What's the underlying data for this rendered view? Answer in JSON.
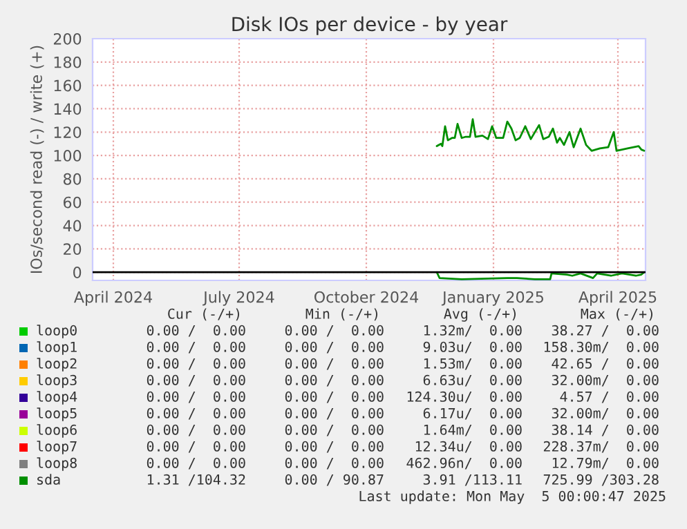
{
  "chart_data": {
    "type": "line",
    "title": "Disk IOs per device - by year",
    "ylabel": "IOs/second read (-) / write (+)",
    "xlim": [
      "2024-03-17",
      "2025-04-21"
    ],
    "xticks": [
      {
        "value": "2024-04-01",
        "label": "April 2024"
      },
      {
        "value": "2024-07-01",
        "label": "July 2024"
      },
      {
        "value": "2024-10-01",
        "label": "October 2024"
      },
      {
        "value": "2025-01-01",
        "label": "January 2025"
      },
      {
        "value": "2025-04-01",
        "label": "April 2025"
      }
    ],
    "ylim": [
      -7,
      200
    ],
    "yticks": [
      0,
      20,
      40,
      60,
      80,
      100,
      120,
      140,
      160,
      180,
      200
    ],
    "grid": true,
    "legend": "bottom",
    "line_style": "solid",
    "marker": "none",
    "ref_lines": [
      {
        "axis": "y",
        "value": 0,
        "color": "#000000"
      }
    ],
    "series": [
      {
        "name": "loop0",
        "color": "#00cc00"
      },
      {
        "name": "loop1",
        "color": "#0066b3"
      },
      {
        "name": "loop2",
        "color": "#ff8000"
      },
      {
        "name": "loop3",
        "color": "#ffcc00"
      },
      {
        "name": "loop4",
        "color": "#330099"
      },
      {
        "name": "loop5",
        "color": "#990099"
      },
      {
        "name": "loop6",
        "color": "#ccff00"
      },
      {
        "name": "loop7",
        "color": "#ff0000"
      },
      {
        "name": "loop8",
        "color": "#808080"
      },
      {
        "name": "sda",
        "color": "#008f00",
        "x": [
          "2024-11-21",
          "2024-11-24",
          "2024-11-25",
          "2024-11-27",
          "2024-11-29",
          "2024-12-02",
          "2024-12-04",
          "2024-12-06",
          "2024-12-09",
          "2024-12-12",
          "2024-12-15",
          "2024-12-17",
          "2024-12-19",
          "2024-12-24",
          "2024-12-28",
          "2024-12-31",
          "2025-01-03",
          "2025-01-08",
          "2025-01-11",
          "2025-01-14",
          "2025-01-17",
          "2025-01-20",
          "2025-01-24",
          "2025-01-28",
          "2025-02-03",
          "2025-02-06",
          "2025-02-10",
          "2025-02-13",
          "2025-02-16",
          "2025-02-18",
          "2025-02-21",
          "2025-02-25",
          "2025-02-28",
          "2025-03-05",
          "2025-03-09",
          "2025-03-13",
          "2025-03-19",
          "2025-03-25",
          "2025-03-29",
          "2025-03-31",
          "2025-04-08",
          "2025-04-16",
          "2025-04-18",
          "2025-04-20"
        ],
        "values": [
          108,
          110,
          108,
          125,
          113,
          115,
          115,
          127,
          115,
          116,
          116,
          131,
          116,
          117,
          114,
          125,
          115,
          115,
          129,
          123,
          113,
          115,
          125,
          114,
          126,
          114,
          116,
          123,
          111,
          115,
          109,
          120,
          107,
          123,
          109,
          104,
          106,
          107,
          120,
          104,
          106,
          108,
          105,
          104
        ]
      },
      {
        "color": "#008f00",
        "x": [
          "2024-11-21",
          "2024-11-23",
          "2024-12-09",
          "2025-01-11",
          "2025-01-18",
          "2025-01-31",
          "2025-02-11",
          "2025-02-12",
          "2025-02-23",
          "2025-02-27",
          "2025-03-05",
          "2025-03-14",
          "2025-03-17",
          "2025-03-27",
          "2025-04-04",
          "2025-04-14",
          "2025-04-18",
          "2025-04-20"
        ],
        "values": [
          0,
          -5,
          -6,
          -5,
          -5,
          -6,
          -6,
          -1,
          -2,
          -3,
          -1,
          -5,
          -1,
          -3,
          -1,
          -3,
          -2,
          0
        ]
      }
    ],
    "annotations": [
      "Cur (-/+)",
      "Min (-/+)",
      "Avg (-/+)",
      "Max (-/+)",
      "0.00 /  0.00",
      "0.00 /  0.00",
      "1.32m/  0.00",
      "38.27 /  0.00",
      "0.00 /  0.00",
      "0.00 /  0.00",
      "9.03u/  0.00",
      "158.30m/  0.00",
      "0.00 /  0.00",
      "0.00 /  0.00",
      "1.53m/  0.00",
      "42.65 /  0.00",
      "0.00 /  0.00",
      "0.00 /  0.00",
      "6.63u/  0.00",
      "32.00m/  0.00",
      "0.00 /  0.00",
      "0.00 /  0.00",
      "124.30u/  0.00",
      "4.57 /  0.00",
      "0.00 /  0.00",
      "0.00 /  0.00",
      "6.17u/  0.00",
      "32.00m/  0.00",
      "0.00 /  0.00",
      "0.00 /  0.00",
      "1.64m/  0.00",
      "38.14 /  0.00",
      "0.00 /  0.00",
      "0.00 /  0.00",
      "12.34u/  0.00",
      "228.37m/  0.00",
      "0.00 /  0.00",
      "0.00 /  0.00",
      "462.96n/  0.00",
      "12.79m/  0.00",
      "1.31 /104.32",
      "0.00 / 90.87",
      "3.91 /113.11",
      "725.99 /303.28",
      "Last update: Mon May  5 00:00:47 2025"
    ]
  }
}
